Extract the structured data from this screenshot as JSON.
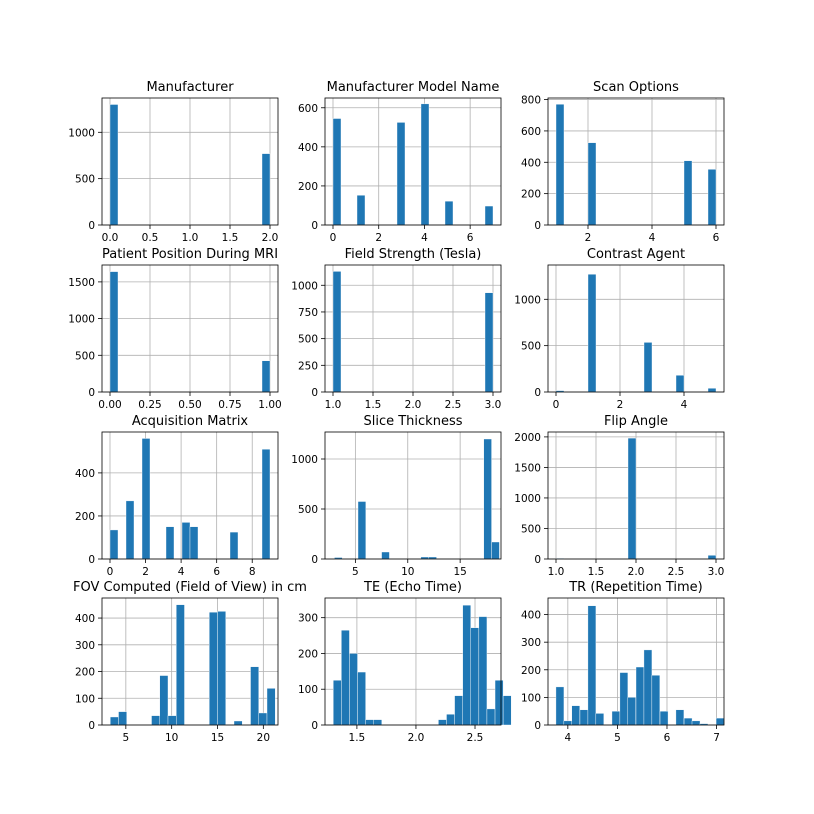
{
  "chart_data": [
    {
      "type": "bar",
      "title": "Manufacturer",
      "xlim": [
        -0.1,
        2.1
      ],
      "ylim": [
        0,
        1370
      ],
      "xticks": [
        0.0,
        0.5,
        1.0,
        1.5,
        2.0
      ],
      "xtick_labels": [
        "0.0",
        "0.5",
        "1.0",
        "1.5",
        "2.0"
      ],
      "yticks": [
        0,
        500,
        1000
      ],
      "ytick_labels": [
        "0",
        "500",
        "1000"
      ],
      "bin_width": 0.1,
      "bins": [
        {
          "x": 0.0,
          "count": 1300
        },
        {
          "x": 1.9,
          "count": 770
        }
      ]
    },
    {
      "type": "bar",
      "title": "Manufacturer Model Name",
      "xlim": [
        -0.35,
        7.35
      ],
      "ylim": [
        0,
        650
      ],
      "xticks": [
        0,
        2,
        4,
        6
      ],
      "xtick_labels": [
        "0",
        "2",
        "4",
        "6"
      ],
      "yticks": [
        0,
        200,
        400,
        600
      ],
      "ytick_labels": [
        "0",
        "200",
        "400",
        "600"
      ],
      "bin_width": 0.35,
      "bins": [
        {
          "x": 0.0,
          "count": 545
        },
        {
          "x": 1.05,
          "count": 152
        },
        {
          "x": 2.8,
          "count": 525
        },
        {
          "x": 3.85,
          "count": 620
        },
        {
          "x": 4.9,
          "count": 122
        },
        {
          "x": 6.65,
          "count": 97
        }
      ]
    },
    {
      "type": "bar",
      "title": "Scan Options",
      "xlim": [
        0.75,
        6.25
      ],
      "ylim": [
        0,
        810
      ],
      "xticks": [
        2,
        4,
        6
      ],
      "xtick_labels": [
        "2",
        "4",
        "6"
      ],
      "yticks": [
        0,
        200,
        400,
        600,
        800
      ],
      "ytick_labels": [
        "0",
        "200",
        "400",
        "600",
        "800"
      ],
      "bin_width": 0.25,
      "bins": [
        {
          "x": 1.0,
          "count": 770
        },
        {
          "x": 2.0,
          "count": 525
        },
        {
          "x": 5.0,
          "count": 410
        },
        {
          "x": 5.75,
          "count": 355
        }
      ]
    },
    {
      "type": "bar",
      "title": "Patient Position During MRI",
      "xlim": [
        -0.05,
        1.05
      ],
      "ylim": [
        0,
        1730
      ],
      "xticks": [
        0.0,
        0.25,
        0.5,
        0.75,
        1.0
      ],
      "xtick_labels": [
        "0.00",
        "0.25",
        "0.50",
        "0.75",
        "1.00"
      ],
      "yticks": [
        0,
        500,
        1000,
        1500
      ],
      "ytick_labels": [
        "0",
        "500",
        "1000",
        "1500"
      ],
      "bin_width": 0.05,
      "bins": [
        {
          "x": 0.0,
          "count": 1640
        },
        {
          "x": 0.95,
          "count": 425
        }
      ]
    },
    {
      "type": "bar",
      "title": "Field Strength (Tesla)",
      "xlim": [
        0.9,
        3.1
      ],
      "ylim": [
        0,
        1190
      ],
      "xticks": [
        1.0,
        1.5,
        2.0,
        2.5,
        3.0
      ],
      "xtick_labels": [
        "1.0",
        "1.5",
        "2.0",
        "2.5",
        "3.0"
      ],
      "yticks": [
        0,
        250,
        500,
        750,
        1000
      ],
      "ytick_labels": [
        "0",
        "250",
        "500",
        "750",
        "1000"
      ],
      "bin_width": 0.1,
      "bins": [
        {
          "x": 1.0,
          "count": 1130
        },
        {
          "x": 2.9,
          "count": 930
        }
      ]
    },
    {
      "type": "bar",
      "title": "Contrast Agent",
      "xlim": [
        -0.25,
        5.25
      ],
      "ylim": [
        0,
        1370
      ],
      "xticks": [
        0,
        2,
        4
      ],
      "xtick_labels": [
        "0",
        "2",
        "4"
      ],
      "yticks": [
        0,
        500,
        1000
      ],
      "ytick_labels": [
        "0",
        "500",
        "1000"
      ],
      "bin_width": 0.25,
      "bins": [
        {
          "x": 0.0,
          "count": 15
        },
        {
          "x": 1.0,
          "count": 1270
        },
        {
          "x": 2.75,
          "count": 535
        },
        {
          "x": 3.75,
          "count": 180
        },
        {
          "x": 4.75,
          "count": 40
        }
      ]
    },
    {
      "type": "bar",
      "title": "Acquisition Matrix",
      "xlim": [
        -0.45,
        9.45
      ],
      "ylim": [
        0,
        590
      ],
      "xticks": [
        0,
        2,
        4,
        6,
        8
      ],
      "xtick_labels": [
        "0",
        "2",
        "4",
        "6",
        "8"
      ],
      "yticks": [
        0,
        200,
        400
      ],
      "ytick_labels": [
        "0",
        "200",
        "400"
      ],
      "bin_width": 0.45,
      "bins": [
        {
          "x": 0.0,
          "count": 135
        },
        {
          "x": 0.9,
          "count": 270
        },
        {
          "x": 1.8,
          "count": 560
        },
        {
          "x": 3.15,
          "count": 150
        },
        {
          "x": 4.05,
          "count": 170
        },
        {
          "x": 4.5,
          "count": 150
        },
        {
          "x": 5.4,
          "count": 0
        },
        {
          "x": 6.75,
          "count": 125
        },
        {
          "x": 8.55,
          "count": 510
        }
      ]
    },
    {
      "type": "bar",
      "title": "Slice Thickness",
      "xlim": [
        2.1,
        18.9
      ],
      "ylim": [
        0,
        1270
      ],
      "xticks": [
        5,
        10,
        15
      ],
      "xtick_labels": [
        "5",
        "10",
        "15"
      ],
      "yticks": [
        0,
        500,
        1000
      ],
      "ytick_labels": [
        "0",
        "500",
        "1000"
      ],
      "bin_width": 0.75,
      "bins": [
        {
          "x": 3.0,
          "count": 15
        },
        {
          "x": 5.25,
          "count": 575
        },
        {
          "x": 7.5,
          "count": 70
        },
        {
          "x": 11.25,
          "count": 20
        },
        {
          "x": 12.0,
          "count": 20
        },
        {
          "x": 17.25,
          "count": 1200
        },
        {
          "x": 18.0,
          "count": 170
        }
      ]
    },
    {
      "type": "bar",
      "title": "Flip Angle",
      "xlim": [
        0.9,
        3.1
      ],
      "ylim": [
        0,
        2080
      ],
      "xticks": [
        1.0,
        1.5,
        2.0,
        2.5,
        3.0
      ],
      "xtick_labels": [
        "1.0",
        "1.5",
        "2.0",
        "2.5",
        "3.0"
      ],
      "yticks": [
        0,
        500,
        1000,
        1500,
        2000
      ],
      "ytick_labels": [
        "0",
        "500",
        "1000",
        "1500",
        "2000"
      ],
      "bin_width": 0.1,
      "bins": [
        {
          "x": 1.0,
          "count": 10
        },
        {
          "x": 1.9,
          "count": 1980
        },
        {
          "x": 2.9,
          "count": 60
        }
      ]
    },
    {
      "type": "bar",
      "title": "FOV Computed (Field of View) in cm",
      "xlim": [
        2.4,
        21.6
      ],
      "ylim": [
        0,
        475
      ],
      "xticks": [
        5,
        10,
        15,
        20
      ],
      "xtick_labels": [
        "5",
        "10",
        "15",
        "20"
      ],
      "yticks": [
        0,
        100,
        200,
        300,
        400
      ],
      "ytick_labels": [
        "0",
        "100",
        "200",
        "300",
        "400"
      ],
      "bin_width": 0.9,
      "bins": [
        {
          "x": 3.3,
          "count": 30
        },
        {
          "x": 4.2,
          "count": 50
        },
        {
          "x": 7.8,
          "count": 35
        },
        {
          "x": 8.7,
          "count": 185
        },
        {
          "x": 9.6,
          "count": 35
        },
        {
          "x": 10.5,
          "count": 450
        },
        {
          "x": 14.1,
          "count": 422
        },
        {
          "x": 15.0,
          "count": 425
        },
        {
          "x": 16.8,
          "count": 15
        },
        {
          "x": 18.6,
          "count": 218
        },
        {
          "x": 19.5,
          "count": 45
        },
        {
          "x": 20.4,
          "count": 137
        }
      ]
    },
    {
      "type": "bar",
      "title": "TE (Echo Time)",
      "xlim": [
        1.23,
        2.72
      ],
      "ylim": [
        0,
        355
      ],
      "xticks": [
        1.5,
        2.0,
        2.5
      ],
      "xtick_labels": [
        "1.5",
        "2.0",
        "2.5"
      ],
      "yticks": [
        0,
        100,
        200,
        300
      ],
      "ytick_labels": [
        "0",
        "100",
        "200",
        "300"
      ],
      "bin_width": 0.0685,
      "bins": [
        {
          "x": 1.3,
          "count": 125
        },
        {
          "x": 1.3685,
          "count": 265
        },
        {
          "x": 1.437,
          "count": 200
        },
        {
          "x": 1.5055,
          "count": 148
        },
        {
          "x": 1.574,
          "count": 15
        },
        {
          "x": 1.6425,
          "count": 15
        },
        {
          "x": 2.19,
          "count": 15
        },
        {
          "x": 2.2585,
          "count": 30
        },
        {
          "x": 2.327,
          "count": 82
        },
        {
          "x": 2.3955,
          "count": 335
        },
        {
          "x": 2.464,
          "count": 272
        },
        {
          "x": 2.5325,
          "count": 303
        },
        {
          "x": 2.601,
          "count": 45
        },
        {
          "x": 2.6695,
          "count": 125
        },
        {
          "x": 2.738,
          "count": 82
        }
      ]
    },
    {
      "type": "bar",
      "title": "TR (Repetition Time)",
      "xlim": [
        3.6,
        7.15
      ],
      "ylim": [
        0,
        460
      ],
      "xticks": [
        4,
        5,
        6,
        7
      ],
      "xtick_labels": [
        "4",
        "5",
        "6",
        "7"
      ],
      "yticks": [
        0,
        100,
        200,
        300,
        400
      ],
      "ytick_labels": [
        "0",
        "100",
        "200",
        "300",
        "400"
      ],
      "bin_width": 0.1615,
      "bins": [
        {
          "x": 3.76,
          "count": 138
        },
        {
          "x": 3.92,
          "count": 15
        },
        {
          "x": 4.08,
          "count": 70
        },
        {
          "x": 4.245,
          "count": 55
        },
        {
          "x": 4.405,
          "count": 432
        },
        {
          "x": 4.565,
          "count": 42
        },
        {
          "x": 4.89,
          "count": 50
        },
        {
          "x": 5.05,
          "count": 190
        },
        {
          "x": 5.21,
          "count": 100
        },
        {
          "x": 5.375,
          "count": 210
        },
        {
          "x": 5.535,
          "count": 272
        },
        {
          "x": 5.695,
          "count": 180
        },
        {
          "x": 5.86,
          "count": 50
        },
        {
          "x": 6.18,
          "count": 55
        },
        {
          "x": 6.345,
          "count": 25
        },
        {
          "x": 6.505,
          "count": 15
        },
        {
          "x": 6.665,
          "count": 5
        },
        {
          "x": 6.99,
          "count": 25
        }
      ]
    }
  ]
}
